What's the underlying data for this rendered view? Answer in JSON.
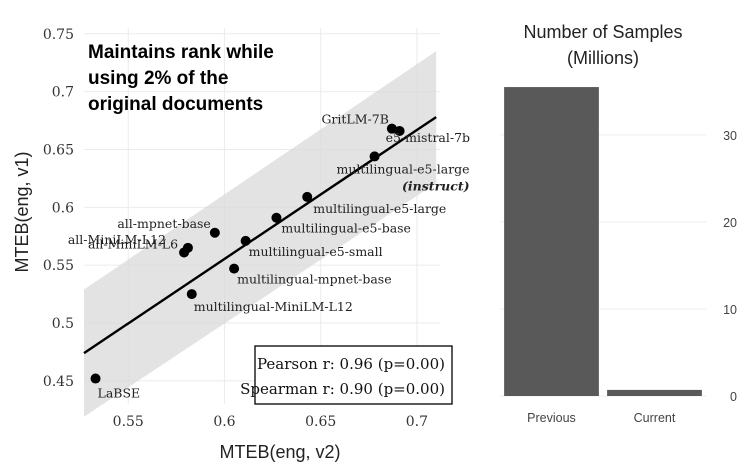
{
  "chart_data": [
    {
      "type": "scatter",
      "title": "",
      "annotation": [
        "Maintains rank while",
        "using 2% of the",
        "original documents"
      ],
      "xlabel": "MTEB(eng, v2)",
      "ylabel": "MTEB(eng, v1)",
      "xlim": [
        0.527,
        0.712
      ],
      "ylim": [
        0.43,
        0.755
      ],
      "xticks": [
        0.55,
        0.6,
        0.65,
        0.7
      ],
      "xtick_labels": [
        "0.55",
        "0.6",
        "0.65",
        "0.7"
      ],
      "yticks": [
        0.45,
        0.5,
        0.55,
        0.6,
        0.65,
        0.7,
        0.75
      ],
      "ytick_labels": [
        "0.45",
        "0.5",
        "0.55",
        "0.6",
        "0.65",
        "0.7",
        "0.75"
      ],
      "regression": {
        "x": [
          0.527,
          0.71
        ],
        "y": [
          0.474,
          0.678
        ]
      },
      "confidence_band": {
        "x": [
          0.527,
          0.71
        ],
        "upper": [
          0.529,
          0.735
        ],
        "lower": [
          0.419,
          0.621
        ]
      },
      "points": [
        {
          "name": "LaBSE",
          "x": 0.533,
          "y": 0.452,
          "label": "LaBSE"
        },
        {
          "name": "all-MiniLM-L6",
          "x": 0.579,
          "y": 0.561,
          "label": "all-MiniLM-L6"
        },
        {
          "name": "all-MiniLM-L12",
          "x": 0.581,
          "y": 0.565,
          "label": "all-MiniLM-L12"
        },
        {
          "name": "all-mpnet-base",
          "x": 0.595,
          "y": 0.578,
          "label": "all-mpnet-base"
        },
        {
          "name": "multilingual-MiniLM-L12",
          "x": 0.583,
          "y": 0.525,
          "label": "multilingual-MiniLM-L12"
        },
        {
          "name": "multilingual-mpnet-base",
          "x": 0.605,
          "y": 0.547,
          "label": "multilingual-mpnet-base"
        },
        {
          "name": "multilingual-e5-small",
          "x": 0.611,
          "y": 0.571,
          "label": "multilingual-e5-small"
        },
        {
          "name": "multilingual-e5-base",
          "x": 0.627,
          "y": 0.591,
          "label": "multilingual-e5-base"
        },
        {
          "name": "multilingual-e5-large",
          "x": 0.643,
          "y": 0.609,
          "label": "multilingual-e5-large"
        },
        {
          "name": "multilingual-e5-large-instruct",
          "x": 0.678,
          "y": 0.644,
          "label": "multilingual-e5-large",
          "label2": "(instruct)"
        },
        {
          "name": "GritLM-7B",
          "x": 0.687,
          "y": 0.668,
          "label": "GritLM-7B"
        },
        {
          "name": "e5-mistral-7b",
          "x": 0.691,
          "y": 0.666,
          "label": "e5-mistral-7b"
        }
      ],
      "stats": {
        "pearson": "Pearson r: 0.96 (p=0.00)",
        "spearman": "Spearman r: 0.90 (p=0.00)"
      }
    },
    {
      "type": "bar",
      "title": [
        "Number of Samples",
        "(Millions)"
      ],
      "categories": [
        "Previous",
        "Current"
      ],
      "values": [
        35.5,
        0.7
      ],
      "ylim": [
        0,
        37
      ],
      "yticks": [
        0,
        10,
        20,
        30
      ],
      "ytick_labels": [
        "0",
        "10",
        "20",
        "30"
      ],
      "bar_color": "#595959"
    }
  ]
}
